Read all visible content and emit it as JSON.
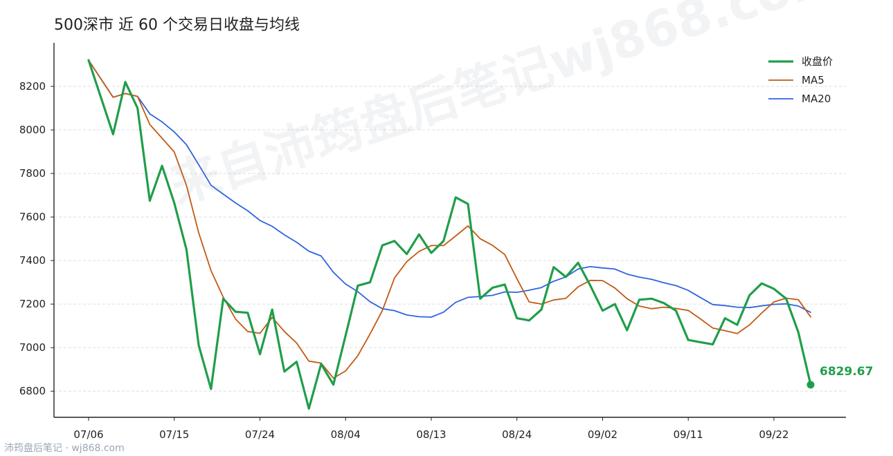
{
  "title": "500深市 近 60 个交易日收盘与均线",
  "watermark": "来自沛筠盘后笔记wj868.com",
  "footer": "沛筠盘后笔记 · wj868.com",
  "chart_data": {
    "type": "line",
    "title": "500深市 近 60 个交易日收盘与均线",
    "xlabel": "",
    "ylabel": "",
    "ylim": [
      6680,
      8400
    ],
    "yticks": [
      6800,
      7000,
      7200,
      7400,
      7600,
      7800,
      8000,
      8200
    ],
    "xtick_labels": [
      "07/06",
      "07/15",
      "07/24",
      "08/04",
      "08/13",
      "08/24",
      "09/02",
      "09/11",
      "09/22"
    ],
    "xtick_indices": [
      0,
      7,
      14,
      21,
      28,
      35,
      42,
      49,
      56
    ],
    "grid": "horizontal dashed",
    "legend_position": "top-right",
    "last_value_label": "6829.67",
    "series": [
      {
        "name": "收盘价",
        "color": "#1f9e4a",
        "width": 3.2,
        "values": [
          8320,
          8150,
          7980,
          8220,
          8100,
          7675,
          7835,
          7665,
          7450,
          7010,
          6810,
          7225,
          7165,
          7160,
          6970,
          7175,
          6890,
          6935,
          6720,
          6925,
          6830,
          7055,
          7285,
          7300,
          7470,
          7490,
          7430,
          7520,
          7435,
          7490,
          7690,
          7660,
          7225,
          7275,
          7290,
          7135,
          7125,
          7175,
          7370,
          7325,
          7390,
          7285,
          7170,
          7200,
          7080,
          7220,
          7225,
          7205,
          7170,
          7035,
          7025,
          7015,
          7135,
          7105,
          7240,
          7295,
          7270,
          7225,
          7070,
          6829.67
        ]
      },
      {
        "name": "MA5",
        "color": "#c05a12",
        "width": 1.8,
        "values": [
          8320,
          8235,
          8150,
          8167,
          8154,
          8025,
          7962,
          7899,
          7745,
          7527,
          7354,
          7232,
          7132,
          7074,
          7066,
          7139,
          7074,
          7021,
          6938,
          6929,
          6860,
          6893,
          6963,
          7063,
          7170,
          7320,
          7395,
          7442,
          7469,
          7469,
          7513,
          7559,
          7500,
          7470,
          7428,
          7317,
          7210,
          7200,
          7219,
          7226,
          7279,
          7309,
          7308,
          7274,
          7225,
          7191,
          7179,
          7186,
          7180,
          7171,
          7132,
          7090,
          7078,
          7065,
          7104,
          7159,
          7210,
          7227,
          7220,
          7141
        ]
      },
      {
        "name": "MA20",
        "color": "#2f63e0",
        "width": 1.8,
        "values": [
          8320,
          8235,
          8150,
          8167,
          8154,
          8074,
          8037,
          7991,
          7932,
          7840,
          7746,
          7705,
          7665,
          7629,
          7584,
          7557,
          7518,
          7484,
          7443,
          7421,
          7346,
          7292,
          7257,
          7211,
          7179,
          7170,
          7150,
          7142,
          7140,
          7163,
          7208,
          7231,
          7235,
          7240,
          7256,
          7254,
          7264,
          7276,
          7305,
          7325,
          7361,
          7372,
          7366,
          7361,
          7338,
          7324,
          7314,
          7298,
          7285,
          7263,
          7230,
          7198,
          7193,
          7186,
          7184,
          7192,
          7199,
          7201,
          7191,
          7162
        ]
      }
    ]
  }
}
